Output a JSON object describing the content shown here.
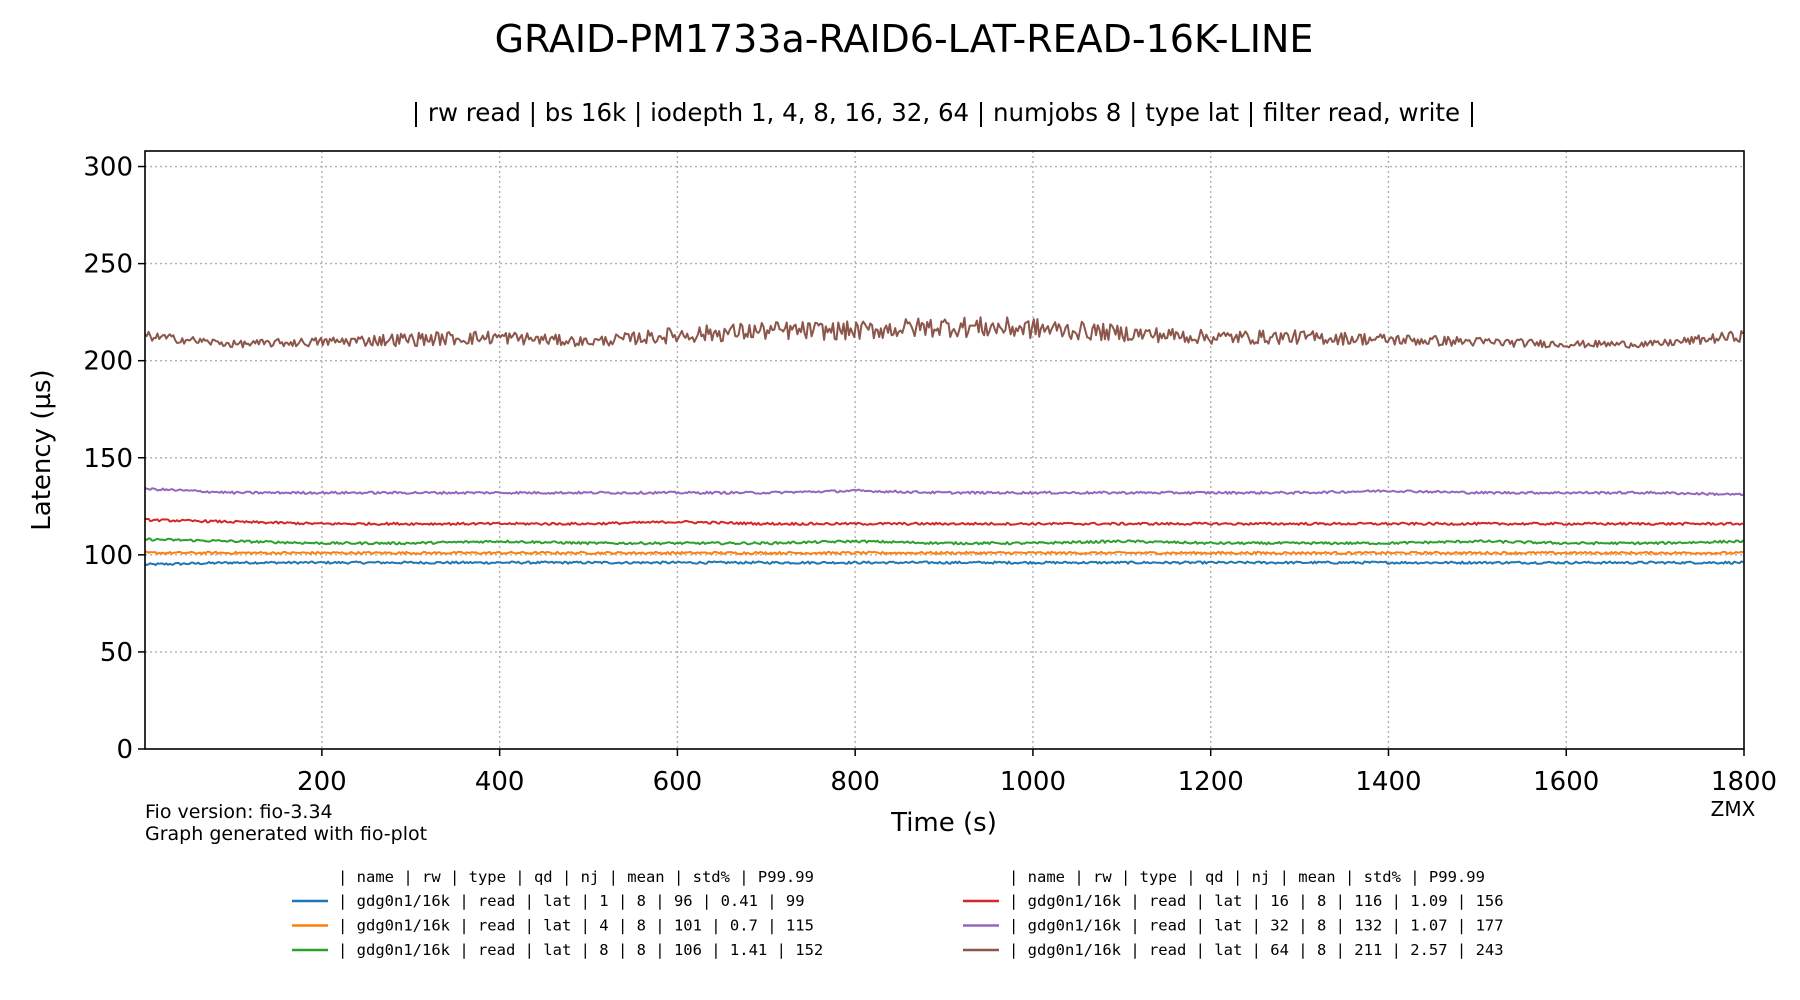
{
  "chart_data": {
    "type": "line",
    "title": "GRAID-PM1733a-RAID6-LAT-READ-16K-LINE",
    "subtitle": "| rw read | bs 16k | iodepth 1, 4, 8, 16, 32, 64 | numjobs 8 | type lat | filter read, write |",
    "xlabel": "Time (s)",
    "ylabel": "Latency (µs)",
    "xlim": [
      1,
      1800
    ],
    "ylim": [
      0,
      308
    ],
    "xticks": [
      200,
      400,
      600,
      800,
      1000,
      1200,
      1400,
      1600,
      1800
    ],
    "yticks": [
      0,
      50,
      100,
      150,
      200,
      250,
      300
    ],
    "grid": true,
    "footnote_lines": [
      "Fio version: fio-3.34",
      "Graph generated with fio-plot"
    ],
    "corner_label": "ZMX",
    "legend": {
      "placement": "bottom",
      "header": "| name        | rw    | type | qd | nj | mean | std% | P99.99",
      "rows": [
        {
          "color": "#1f77b4",
          "text": "| gdg0n1/16k |  read |  lat |  1 |  8 |   96 | 0.41 |   99"
        },
        {
          "color": "#ff7f0e",
          "text": "| gdg0n1/16k |  read |  lat |  4 |  8 |  101 |  0.7 |  115"
        },
        {
          "color": "#2ca02c",
          "text": "| gdg0n1/16k |  read |  lat |  8 |  8 |  106 | 1.41 |  152"
        },
        {
          "color": "#d62728",
          "text": "| gdg0n1/16k |  read |  lat | 16 |  8 |  116 | 1.09 |  156"
        },
        {
          "color": "#9467bd",
          "text": "| gdg0n1/16k |  read |  lat | 32 |  8 |  132 | 1.07 |  177"
        },
        {
          "color": "#8c564b",
          "text": "| gdg0n1/16k |  read |  lat | 64 |  8 |  211 | 2.57 |  243"
        }
      ]
    },
    "series": [
      {
        "color": "#1f77b4",
        "qd": 1,
        "mean": 96,
        "std_pct": 0.41,
        "p9999": 99,
        "x": [
          1,
          100,
          200,
          300,
          400,
          500,
          600,
          700,
          800,
          900,
          1000,
          1100,
          1200,
          1300,
          1400,
          1500,
          1600,
          1700,
          1800
        ],
        "values": [
          95,
          96,
          96,
          96,
          96,
          96,
          96,
          96,
          96,
          96,
          96,
          96,
          96,
          96,
          96,
          96,
          96,
          96,
          96
        ]
      },
      {
        "color": "#ff7f0e",
        "qd": 4,
        "mean": 101,
        "std_pct": 0.7,
        "p9999": 115,
        "x": [
          1,
          100,
          200,
          300,
          400,
          500,
          600,
          700,
          800,
          900,
          1000,
          1100,
          1200,
          1300,
          1400,
          1500,
          1600,
          1700,
          1800
        ],
        "values": [
          101,
          101,
          101,
          101,
          101,
          101,
          101,
          101,
          101,
          101,
          101,
          101,
          101,
          101,
          101,
          101,
          101,
          101,
          101
        ]
      },
      {
        "color": "#2ca02c",
        "qd": 8,
        "mean": 106,
        "std_pct": 1.41,
        "p9999": 152,
        "x": [
          1,
          100,
          200,
          300,
          400,
          500,
          600,
          700,
          800,
          900,
          1000,
          1100,
          1200,
          1300,
          1400,
          1500,
          1600,
          1700,
          1800
        ],
        "values": [
          108,
          107,
          106,
          106,
          107,
          106,
          106,
          106,
          107,
          106,
          106,
          107,
          106,
          106,
          106,
          107,
          106,
          106,
          107
        ]
      },
      {
        "color": "#d62728",
        "qd": 16,
        "mean": 116,
        "std_pct": 1.09,
        "p9999": 156,
        "x": [
          1,
          100,
          200,
          300,
          400,
          500,
          600,
          700,
          800,
          900,
          1000,
          1100,
          1200,
          1300,
          1400,
          1500,
          1600,
          1700,
          1800
        ],
        "values": [
          118,
          117,
          116,
          116,
          116,
          116,
          117,
          116,
          116,
          116,
          116,
          116,
          116,
          116,
          116,
          116,
          116,
          116,
          116
        ]
      },
      {
        "color": "#9467bd",
        "qd": 32,
        "mean": 132,
        "std_pct": 1.07,
        "p9999": 177,
        "x": [
          1,
          100,
          200,
          300,
          400,
          500,
          600,
          700,
          800,
          900,
          1000,
          1100,
          1200,
          1300,
          1400,
          1500,
          1600,
          1700,
          1800
        ],
        "values": [
          134,
          132,
          132,
          132,
          132,
          132,
          132,
          132,
          133,
          132,
          132,
          132,
          132,
          132,
          133,
          132,
          132,
          132,
          131
        ]
      },
      {
        "color": "#8c564b",
        "qd": 64,
        "mean": 211,
        "std_pct": 2.57,
        "p9999": 243,
        "x": [
          1,
          100,
          200,
          300,
          400,
          500,
          600,
          700,
          800,
          900,
          1000,
          1100,
          1200,
          1300,
          1400,
          1500,
          1600,
          1700,
          1800
        ],
        "values": [
          212,
          208,
          209,
          210,
          211,
          209,
          212,
          214,
          214,
          216,
          215,
          213,
          211,
          211,
          210,
          209,
          208,
          208,
          212
        ],
        "noise_amplitude": [
          4,
          3,
          4,
          6,
          6,
          4,
          7,
          8,
          8,
          9,
          9,
          7,
          6,
          6,
          5,
          4,
          3,
          3,
          5
        ]
      }
    ]
  }
}
